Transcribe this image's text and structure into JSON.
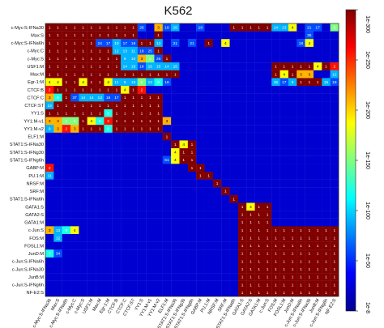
{
  "chart_data": {
    "type": "heatmap",
    "title": "K562",
    "xlabel": "",
    "ylabel": "",
    "labels": [
      "c-Myc:S-IFNa30",
      "Max:S",
      "c-Myc:S-IFNa6h",
      "c-Myc:C",
      "c-Myc:S",
      "USF1:M",
      "Max:M",
      "Egr-1:M",
      "CTCF:B",
      "CTCF:C",
      "CTCF:ST",
      "YY1:S",
      "YY1:M-v1",
      "YY1:M-v2",
      "ELF1:M",
      "STAT1:S-IFNa30",
      "STAT1:S-IFNg30",
      "STAT1:S-IFNg6h",
      "GABP:M",
      "PU.1:M",
      "NRSF:M",
      "SRF:M",
      "STAT1:S-IFNa6h",
      "GATA1:S",
      "GATA2:S",
      "GATA1:M",
      "c-Jun:S",
      "FOS:M",
      "FOSL1:M",
      "JunD:M",
      "c-Jun:S-IFNa6h",
      "c-Jun:S-IFNa30",
      "JunB:M",
      "c-Jun:S-IFNg6h",
      "NF-E2:S"
    ],
    "columns": [
      "c-Myc:S-IFNa30",
      "Max:S",
      "c-Myc:S-IFNa6h",
      "c-Myc:C",
      "c-Myc:S",
      "USF1:M",
      "Max:M",
      "Egr-1:M",
      "CTCF:B",
      "CTCF:C",
      "CTCF:ST",
      "YY1:S",
      "YY1:M-v1",
      "YY1:M-v2",
      "ELF1:M",
      "STAT1:S-IFNa30",
      "STAT1:S-IFNg30",
      "STAT1:S-IFNg6h",
      "GABP:M",
      "PU.1:M",
      "NRSF:M",
      "SRF:M",
      "STAT1:S-IFNa6h",
      "GATA1:S",
      "GATA2:S",
      "GATA1:M",
      "c-Jun:S",
      "FOS:M",
      "FOSL1:M",
      "JunD:M",
      "c-Jun:S-IFNa6h",
      "c-Jun:S-IFNa30",
      "JunB:M",
      "c-Jun:S-IFNg6h",
      "NF-E2:S"
    ],
    "value_note": "cells show -log10 p-value (overlap significance); 1 = highest significance",
    "cells": [
      [
        1,
        1,
        1,
        1,
        1,
        1,
        1,
        1,
        1,
        1,
        1,
        26,
        0,
        3,
        18,
        15,
        0,
        0,
        18,
        0,
        0,
        0,
        1,
        1,
        1,
        1,
        1,
        14,
        13,
        4,
        0,
        21,
        17,
        0,
        5
      ],
      [
        1,
        1,
        1,
        1,
        1,
        1,
        1,
        1,
        1,
        1,
        1,
        0,
        0,
        1,
        0,
        0,
        0,
        0,
        0,
        0,
        0,
        0,
        0,
        0,
        0,
        0,
        0,
        0,
        0,
        0,
        0,
        35,
        0,
        0,
        0
      ],
      [
        1,
        1,
        1,
        1,
        1,
        1,
        24,
        17,
        10,
        17,
        18,
        1,
        1,
        13,
        0,
        21,
        0,
        21,
        0,
        1,
        0,
        4,
        0,
        0,
        0,
        0,
        0,
        0,
        0,
        0,
        18,
        4,
        0,
        0,
        0
      ],
      [
        1,
        1,
        1,
        1,
        1,
        1,
        1,
        1,
        12,
        13,
        11,
        18,
        25,
        1,
        0,
        0,
        0,
        0,
        0,
        0,
        0,
        0,
        0,
        0,
        0,
        0,
        0,
        0,
        0,
        0,
        0,
        0,
        0,
        0,
        0
      ],
      [
        1,
        1,
        1,
        1,
        1,
        1,
        1,
        1,
        1,
        9,
        10,
        3,
        5,
        26,
        1,
        0,
        0,
        0,
        0,
        0,
        0,
        0,
        0,
        0,
        0,
        0,
        0,
        0,
        0,
        0,
        0,
        0,
        0,
        0,
        0
      ],
      [
        1,
        1,
        1,
        1,
        1,
        1,
        1,
        1,
        1,
        14,
        15,
        18,
        15,
        15,
        14,
        15,
        0,
        0,
        0,
        0,
        0,
        0,
        0,
        0,
        0,
        0,
        0,
        1,
        1,
        1,
        1,
        1,
        4,
        1,
        2
      ],
      [
        1,
        1,
        1,
        1,
        1,
        1,
        1,
        1,
        1,
        1,
        1,
        1,
        1,
        1,
        1,
        1,
        0,
        0,
        0,
        0,
        0,
        0,
        0,
        0,
        0,
        0,
        0,
        1,
        4,
        1,
        3,
        3,
        0,
        0,
        12
      ],
      [
        4,
        4,
        1,
        1,
        4,
        1,
        1,
        4,
        11,
        9,
        15,
        5,
        13,
        8,
        16,
        0,
        0,
        0,
        0,
        0,
        0,
        0,
        0,
        0,
        0,
        0,
        0,
        15,
        17,
        9,
        1,
        1,
        1,
        15,
        18
      ],
      [
        2,
        1,
        1,
        1,
        1,
        1,
        1,
        1,
        1,
        4,
        1,
        2,
        0,
        0,
        0,
        0,
        0,
        0,
        0,
        0,
        0,
        0,
        0,
        0,
        0,
        0,
        0,
        0,
        0,
        0,
        0,
        0,
        0,
        0,
        0
      ],
      [
        3,
        6,
        1,
        37,
        14,
        14,
        13,
        18,
        17,
        1,
        1,
        1,
        1,
        1,
        0,
        0,
        0,
        0,
        0,
        0,
        0,
        0,
        0,
        0,
        0,
        0,
        0,
        0,
        0,
        0,
        0,
        0,
        0,
        0,
        0
      ],
      [
        13,
        1,
        1,
        1,
        1,
        1,
        1,
        1,
        1,
        1,
        1,
        1,
        1,
        1,
        0,
        0,
        0,
        0,
        0,
        0,
        0,
        0,
        0,
        0,
        0,
        0,
        0,
        0,
        0,
        0,
        0,
        0,
        0,
        0,
        0
      ],
      [
        1,
        1,
        1,
        1,
        1,
        1,
        1,
        6,
        1,
        1,
        1,
        1,
        1,
        1,
        0,
        0,
        0,
        0,
        0,
        0,
        0,
        0,
        0,
        0,
        0,
        0,
        0,
        0,
        0,
        0,
        0,
        0,
        0,
        0,
        0
      ],
      [
        3,
        3,
        5,
        5,
        1,
        4,
        6,
        2,
        1,
        1,
        1,
        1,
        1,
        1,
        3,
        0,
        0,
        0,
        0,
        0,
        0,
        0,
        0,
        0,
        0,
        0,
        0,
        0,
        0,
        0,
        0,
        0,
        0,
        0,
        0
      ],
      [
        9,
        3,
        2,
        3,
        1,
        1,
        1,
        8,
        1,
        1,
        1,
        1,
        1,
        1,
        0,
        0,
        0,
        0,
        0,
        0,
        0,
        0,
        0,
        0,
        0,
        0,
        0,
        0,
        0,
        0,
        0,
        0,
        0,
        0,
        0
      ],
      [
        0,
        0,
        0,
        0,
        0,
        0,
        0,
        0,
        0,
        0,
        0,
        0,
        0,
        0,
        1,
        0,
        0,
        0,
        0,
        0,
        0,
        0,
        0,
        0,
        0,
        0,
        0,
        0,
        0,
        0,
        0,
        0,
        0,
        0,
        0
      ],
      [
        0,
        0,
        0,
        0,
        0,
        0,
        0,
        0,
        0,
        0,
        0,
        0,
        0,
        0,
        0,
        1,
        4,
        1,
        0,
        0,
        0,
        0,
        0,
        0,
        0,
        0,
        0,
        0,
        0,
        0,
        0,
        0,
        0,
        0,
        0
      ],
      [
        0,
        0,
        0,
        0,
        0,
        0,
        0,
        0,
        0,
        0,
        0,
        0,
        0,
        0,
        0,
        4,
        1,
        1,
        0,
        0,
        0,
        0,
        0,
        0,
        0,
        0,
        0,
        0,
        0,
        0,
        0,
        0,
        0,
        0,
        0
      ],
      [
        0,
        0,
        0,
        0,
        0,
        0,
        0,
        0,
        0,
        0,
        0,
        0,
        0,
        0,
        61,
        4,
        1,
        1,
        0,
        0,
        0,
        0,
        0,
        0,
        0,
        0,
        0,
        0,
        0,
        0,
        0,
        0,
        0,
        0,
        0
      ],
      [
        2,
        0,
        0,
        0,
        0,
        0,
        0,
        0,
        0,
        0,
        0,
        0,
        0,
        0,
        0,
        0,
        0,
        1,
        1,
        0,
        0,
        0,
        0,
        0,
        0,
        0,
        0,
        0,
        0,
        0,
        0,
        0,
        0,
        0,
        0
      ],
      [
        11,
        0,
        0,
        0,
        0,
        0,
        0,
        0,
        0,
        0,
        0,
        0,
        0,
        0,
        0,
        0,
        0,
        0,
        1,
        1,
        0,
        0,
        0,
        0,
        0,
        0,
        0,
        0,
        0,
        0,
        0,
        0,
        0,
        0,
        0
      ],
      [
        0,
        0,
        0,
        0,
        0,
        0,
        0,
        0,
        0,
        0,
        0,
        0,
        0,
        0,
        0,
        0,
        0,
        0,
        0,
        0,
        1,
        0,
        0,
        0,
        0,
        0,
        0,
        0,
        0,
        0,
        0,
        0,
        0,
        0,
        0
      ],
      [
        0,
        0,
        0,
        0,
        0,
        0,
        0,
        0,
        0,
        0,
        0,
        0,
        0,
        0,
        0,
        0,
        0,
        0,
        0,
        0,
        0,
        1,
        0,
        0,
        0,
        0,
        0,
        0,
        0,
        0,
        0,
        0,
        0,
        0,
        0
      ],
      [
        0,
        0,
        0,
        0,
        0,
        0,
        0,
        0,
        0,
        0,
        0,
        0,
        0,
        0,
        0,
        0,
        0,
        0,
        0,
        0,
        0,
        0,
        1,
        0,
        0,
        0,
        0,
        0,
        0,
        0,
        0,
        0,
        0,
        0,
        0
      ],
      [
        0,
        0,
        0,
        0,
        0,
        0,
        0,
        0,
        0,
        0,
        0,
        0,
        0,
        0,
        0,
        0,
        0,
        0,
        0,
        0,
        0,
        0,
        0,
        1,
        4,
        1,
        1,
        0,
        0,
        0,
        0,
        0,
        0,
        0,
        0
      ],
      [
        0,
        0,
        0,
        0,
        0,
        0,
        0,
        0,
        0,
        0,
        0,
        0,
        0,
        0,
        0,
        0,
        0,
        0,
        0,
        0,
        0,
        0,
        0,
        1,
        1,
        1,
        1,
        0,
        0,
        0,
        0,
        0,
        0,
        0,
        0
      ],
      [
        0,
        0,
        0,
        0,
        0,
        0,
        0,
        0,
        0,
        0,
        0,
        0,
        0,
        0,
        0,
        0,
        0,
        0,
        0,
        0,
        0,
        0,
        0,
        1,
        1,
        1,
        1,
        0,
        0,
        0,
        0,
        0,
        0,
        0,
        0
      ],
      [
        3,
        13,
        8,
        4,
        0,
        0,
        0,
        0,
        0,
        0,
        0,
        0,
        0,
        0,
        0,
        0,
        0,
        0,
        0,
        0,
        0,
        0,
        0,
        1,
        1,
        1,
        1,
        1,
        1,
        1,
        1,
        1,
        1,
        1,
        1
      ],
      [
        0,
        12,
        0,
        0,
        0,
        0,
        0,
        0,
        0,
        0,
        0,
        0,
        0,
        0,
        0,
        0,
        0,
        0,
        0,
        0,
        0,
        0,
        0,
        1,
        1,
        1,
        1,
        1,
        1,
        1,
        1,
        1,
        1,
        1,
        1
      ],
      [
        0,
        0,
        0,
        0,
        0,
        0,
        0,
        0,
        0,
        0,
        0,
        0,
        0,
        0,
        0,
        0,
        0,
        0,
        0,
        0,
        0,
        0,
        0,
        1,
        1,
        1,
        1,
        1,
        1,
        1,
        1,
        1,
        1,
        1,
        1
      ],
      [
        7,
        34,
        0,
        0,
        0,
        0,
        0,
        0,
        0,
        0,
        0,
        0,
        0,
        0,
        0,
        0,
        0,
        0,
        0,
        0,
        0,
        0,
        0,
        1,
        1,
        1,
        1,
        1,
        1,
        1,
        1,
        1,
        1,
        1,
        1
      ],
      [
        0,
        0,
        0,
        0,
        0,
        0,
        0,
        0,
        0,
        0,
        0,
        0,
        0,
        0,
        0,
        0,
        0,
        0,
        0,
        0,
        0,
        0,
        0,
        1,
        1,
        1,
        1,
        1,
        1,
        1,
        1,
        1,
        1,
        1,
        1
      ],
      [
        0,
        0,
        0,
        0,
        0,
        0,
        0,
        0,
        0,
        0,
        0,
        0,
        0,
        0,
        0,
        0,
        0,
        0,
        0,
        0,
        0,
        0,
        0,
        1,
        1,
        1,
        1,
        1,
        1,
        1,
        1,
        1,
        1,
        1,
        1
      ],
      [
        0,
        0,
        0,
        0,
        0,
        0,
        0,
        0,
        0,
        0,
        0,
        0,
        0,
        0,
        0,
        0,
        0,
        0,
        0,
        0,
        0,
        0,
        0,
        1,
        1,
        1,
        1,
        1,
        1,
        1,
        1,
        1,
        1,
        1,
        1
      ],
      [
        0,
        0,
        0,
        0,
        0,
        0,
        0,
        0,
        0,
        0,
        0,
        0,
        0,
        0,
        0,
        0,
        0,
        0,
        0,
        0,
        0,
        0,
        0,
        1,
        1,
        1,
        1,
        1,
        1,
        1,
        1,
        1,
        1,
        1,
        1
      ],
      [
        0,
        0,
        0,
        0,
        0,
        0,
        0,
        0,
        0,
        0,
        0,
        0,
        0,
        0,
        0,
        0,
        0,
        0,
        0,
        0,
        0,
        0,
        0,
        1,
        1,
        1,
        1,
        1,
        1,
        1,
        1,
        1,
        1,
        1,
        1
      ]
    ],
    "colorbar": {
      "colormap": "jet",
      "ticks": [
        "1e-8",
        "1e-50",
        "1e-100",
        "1e-150",
        "1e-200",
        "1e-250",
        "1e-300"
      ],
      "range_labels": [
        "1e-8",
        "1e-300"
      ]
    },
    "colors": {
      "low": "#00008f",
      "mid": "#00ffff",
      "high": "#800000"
    }
  }
}
